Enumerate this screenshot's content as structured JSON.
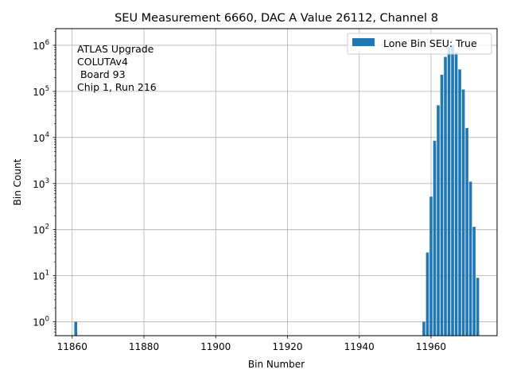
{
  "chart_data": {
    "type": "bar",
    "title": "SEU Measurement 6660, DAC A Value 26112, Channel 8",
    "xlabel": "Bin Number",
    "ylabel": "Bin Count",
    "xlim": [
      11855.4,
      11978.4
    ],
    "ylim": [
      0.5,
      2300000
    ],
    "y_scale": "log",
    "grid": true,
    "legend_position": "top-right",
    "bar_color": "#1f77b4",
    "x_ticks": [
      11860,
      11880,
      11900,
      11920,
      11940,
      11960
    ],
    "x_tick_labels": [
      "11860",
      "11880",
      "11900",
      "11920",
      "11940",
      "11960"
    ],
    "y_ticks": [
      1,
      10,
      100,
      1000,
      10000,
      100000,
      1000000
    ],
    "y_tick_labels": [
      {
        "base": "10",
        "exp": "0"
      },
      {
        "base": "10",
        "exp": "1"
      },
      {
        "base": "10",
        "exp": "2"
      },
      {
        "base": "10",
        "exp": "3"
      },
      {
        "base": "10",
        "exp": "4"
      },
      {
        "base": "10",
        "exp": "5"
      },
      {
        "base": "10",
        "exp": "6"
      }
    ],
    "series": [
      {
        "name": "Lone Bin SEU: True",
        "x": [
          11861,
          11958,
          11959,
          11960,
          11961,
          11962,
          11963,
          11964,
          11965,
          11966,
          11967,
          11968,
          11969,
          11970,
          11971,
          11972,
          11973
        ],
        "values": [
          1,
          1,
          32,
          520,
          8500,
          50000,
          230000,
          560000,
          900000,
          1000000,
          700000,
          300000,
          110000,
          16000,
          1100,
          115,
          9
        ]
      }
    ],
    "annotations": [
      "ATLAS Upgrade",
      "COLUTAv4",
      " Board 93",
      "Chip 1, Run 216"
    ]
  }
}
